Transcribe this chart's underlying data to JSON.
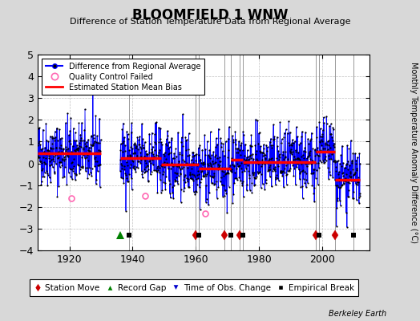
{
  "title": "BLOOMFIELD 1 WNW",
  "subtitle": "Difference of Station Temperature Data from Regional Average",
  "ylabel": "Monthly Temperature Anomaly Difference (°C)",
  "xlim": [
    1910,
    2015
  ],
  "ylim": [
    -4,
    5
  ],
  "yticks": [
    -4,
    -3,
    -2,
    -1,
    0,
    1,
    2,
    3,
    4,
    5
  ],
  "xticks": [
    1920,
    1940,
    1960,
    1980,
    2000
  ],
  "fig_bg_color": "#d8d8d8",
  "plot_bg_color": "#ffffff",
  "seed": 42,
  "station_moves": [
    1960,
    1969,
    1974,
    1998,
    2004
  ],
  "record_gaps": [
    1936
  ],
  "obs_changes": [],
  "empirical_breaks": [
    1939,
    1961,
    1971,
    1975,
    1999,
    2010
  ],
  "bias_segments": [
    {
      "x_start": 1910,
      "x_end": 1930,
      "bias": 0.45
    },
    {
      "x_start": 1936,
      "x_end": 1949,
      "bias": 0.25
    },
    {
      "x_start": 1949,
      "x_end": 1961,
      "bias": -0.05
    },
    {
      "x_start": 1961,
      "x_end": 1971,
      "bias": -0.25
    },
    {
      "x_start": 1971,
      "x_end": 1975,
      "bias": 0.15
    },
    {
      "x_start": 1975,
      "x_end": 1998,
      "bias": 0.05
    },
    {
      "x_start": 1998,
      "x_end": 2004,
      "bias": 0.55
    },
    {
      "x_start": 2004,
      "x_end": 2012,
      "bias": -0.75
    }
  ],
  "gap_start": 1930,
  "gap_end": 1936,
  "qc_failed": [
    {
      "year": 1920.5,
      "value": -1.6
    },
    {
      "year": 1944.0,
      "value": -1.5
    },
    {
      "year": 1963.0,
      "value": -2.3
    }
  ],
  "marker_color": "#000000",
  "line_color": "#0000ff",
  "bias_color": "#ff0000",
  "qc_color": "#ff69b4",
  "station_move_color": "#cc0000",
  "record_gap_color": "#008000",
  "obs_change_color": "#0000cc",
  "empirical_break_color": "#000000",
  "watermark": "Berkeley Earth",
  "marker_y": -3.3
}
